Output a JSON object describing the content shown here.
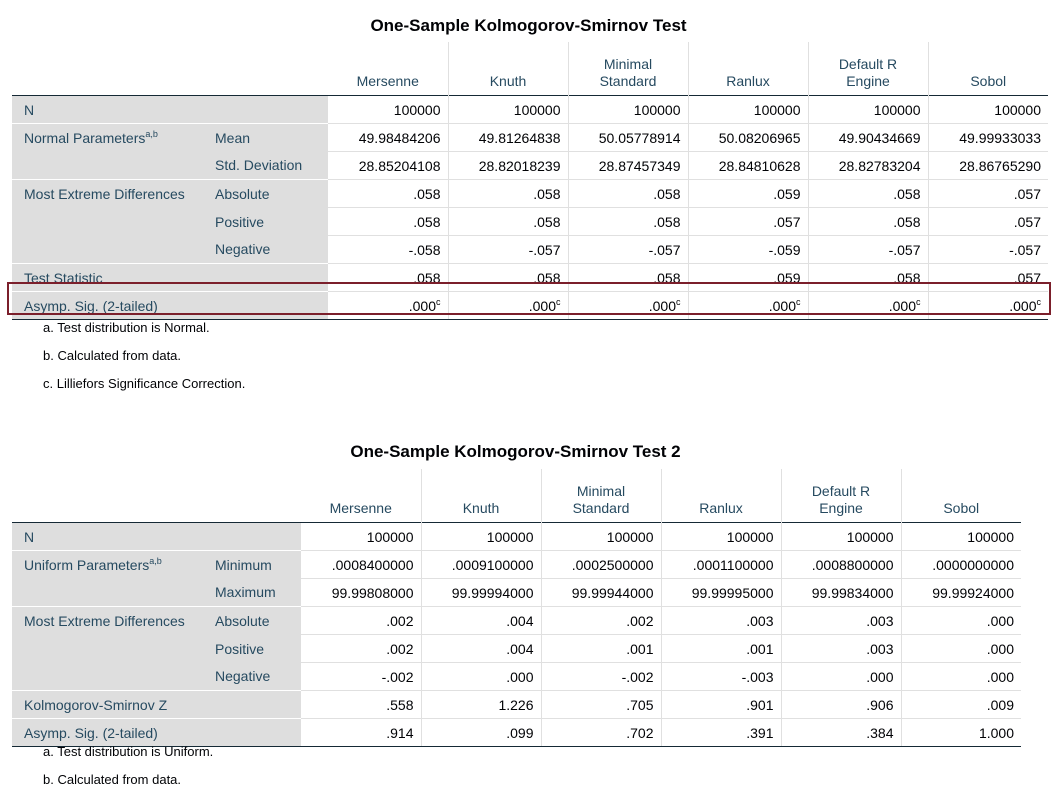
{
  "table1": {
    "title": "One-Sample Kolmogorov-Smirnov Test",
    "columns": [
      {
        "line1": "",
        "line2": "Mersenne"
      },
      {
        "line1": "",
        "line2": "Knuth"
      },
      {
        "line1": "Minimal",
        "line2": "Standard"
      },
      {
        "line1": "",
        "line2": "Ranlux"
      },
      {
        "line1": "Default R",
        "line2": "Engine"
      },
      {
        "line1": "",
        "line2": "Sobol"
      }
    ],
    "rows": [
      {
        "label1": "N",
        "label2": "",
        "values": [
          "100000",
          "100000",
          "100000",
          "100000",
          "100000",
          "100000"
        ]
      },
      {
        "label1": "Normal Parameters",
        "sup1": "a,b",
        "label2": "Mean",
        "values": [
          "49.98484206",
          "49.81264838",
          "50.05778914",
          "50.08206965",
          "49.90434669",
          "49.99933033"
        ]
      },
      {
        "label1": "",
        "label2": "Std. Deviation",
        "values": [
          "28.85204108",
          "28.82018239",
          "28.87457349",
          "28.84810628",
          "28.82783204",
          "28.86765290"
        ]
      },
      {
        "label1": "Most Extreme Differences",
        "label2": "Absolute",
        "values": [
          ".058",
          ".058",
          ".058",
          ".059",
          ".058",
          ".057"
        ]
      },
      {
        "label1": "",
        "label2": "Positive",
        "values": [
          ".058",
          ".058",
          ".058",
          ".057",
          ".058",
          ".057"
        ]
      },
      {
        "label1": "",
        "label2": "Negative",
        "values": [
          "-.058",
          "-.057",
          "-.057",
          "-.059",
          "-.057",
          "-.057"
        ]
      },
      {
        "label1": "Test Statistic",
        "label2": "",
        "values": [
          ".058",
          ".058",
          ".058",
          ".059",
          ".058",
          ".057"
        ]
      },
      {
        "label1": "Asymp. Sig. (2-tailed)",
        "label2": "",
        "values": [
          ".000",
          ".000",
          ".000",
          ".000",
          ".000",
          ".000"
        ],
        "value_sup": "c"
      }
    ],
    "footnotes": [
      "a. Test distribution is Normal.",
      "b. Calculated from data.",
      "c. Lilliefors Significance Correction."
    ]
  },
  "table2": {
    "title": "One-Sample Kolmogorov-Smirnov Test 2",
    "columns": [
      {
        "line1": "",
        "line2": "Mersenne"
      },
      {
        "line1": "",
        "line2": "Knuth"
      },
      {
        "line1": "Minimal",
        "line2": "Standard"
      },
      {
        "line1": "",
        "line2": "Ranlux"
      },
      {
        "line1": "Default R",
        "line2": "Engine"
      },
      {
        "line1": "",
        "line2": "Sobol"
      }
    ],
    "rows": [
      {
        "label1": "N",
        "label2": "",
        "values": [
          "100000",
          "100000",
          "100000",
          "100000",
          "100000",
          "100000"
        ]
      },
      {
        "label1": "Uniform Parameters",
        "sup1": "a,b",
        "label2": "Minimum",
        "values": [
          ".0008400000",
          ".0009100000",
          ".0002500000",
          ".0001100000",
          ".0008800000",
          ".0000000000"
        ]
      },
      {
        "label1": "",
        "label2": "Maximum",
        "values": [
          "99.99808000",
          "99.99994000",
          "99.99944000",
          "99.99995000",
          "99.99834000",
          "99.99924000"
        ]
      },
      {
        "label1": "Most Extreme Differences",
        "label2": "Absolute",
        "values": [
          ".002",
          ".004",
          ".002",
          ".003",
          ".003",
          ".000"
        ]
      },
      {
        "label1": "",
        "label2": "Positive",
        "values": [
          ".002",
          ".004",
          ".001",
          ".001",
          ".003",
          ".000"
        ]
      },
      {
        "label1": "",
        "label2": "Negative",
        "values": [
          "-.002",
          ".000",
          "-.002",
          "-.003",
          ".000",
          ".000"
        ]
      },
      {
        "label1": "Kolmogorov-Smirnov Z",
        "label2": "",
        "values": [
          ".558",
          "1.226",
          ".705",
          ".901",
          ".906",
          ".009"
        ]
      },
      {
        "label1": "Asymp. Sig. (2-tailed)",
        "label2": "",
        "values": [
          ".914",
          ".099",
          ".702",
          ".391",
          ".384",
          "1.000"
        ]
      }
    ],
    "footnotes": [
      "a. Test distribution is Uniform.",
      "b. Calculated from data."
    ]
  },
  "colors": {
    "highlight_border": "#7b1f2b",
    "label_bg": "#dedede",
    "text": "#264a60"
  }
}
